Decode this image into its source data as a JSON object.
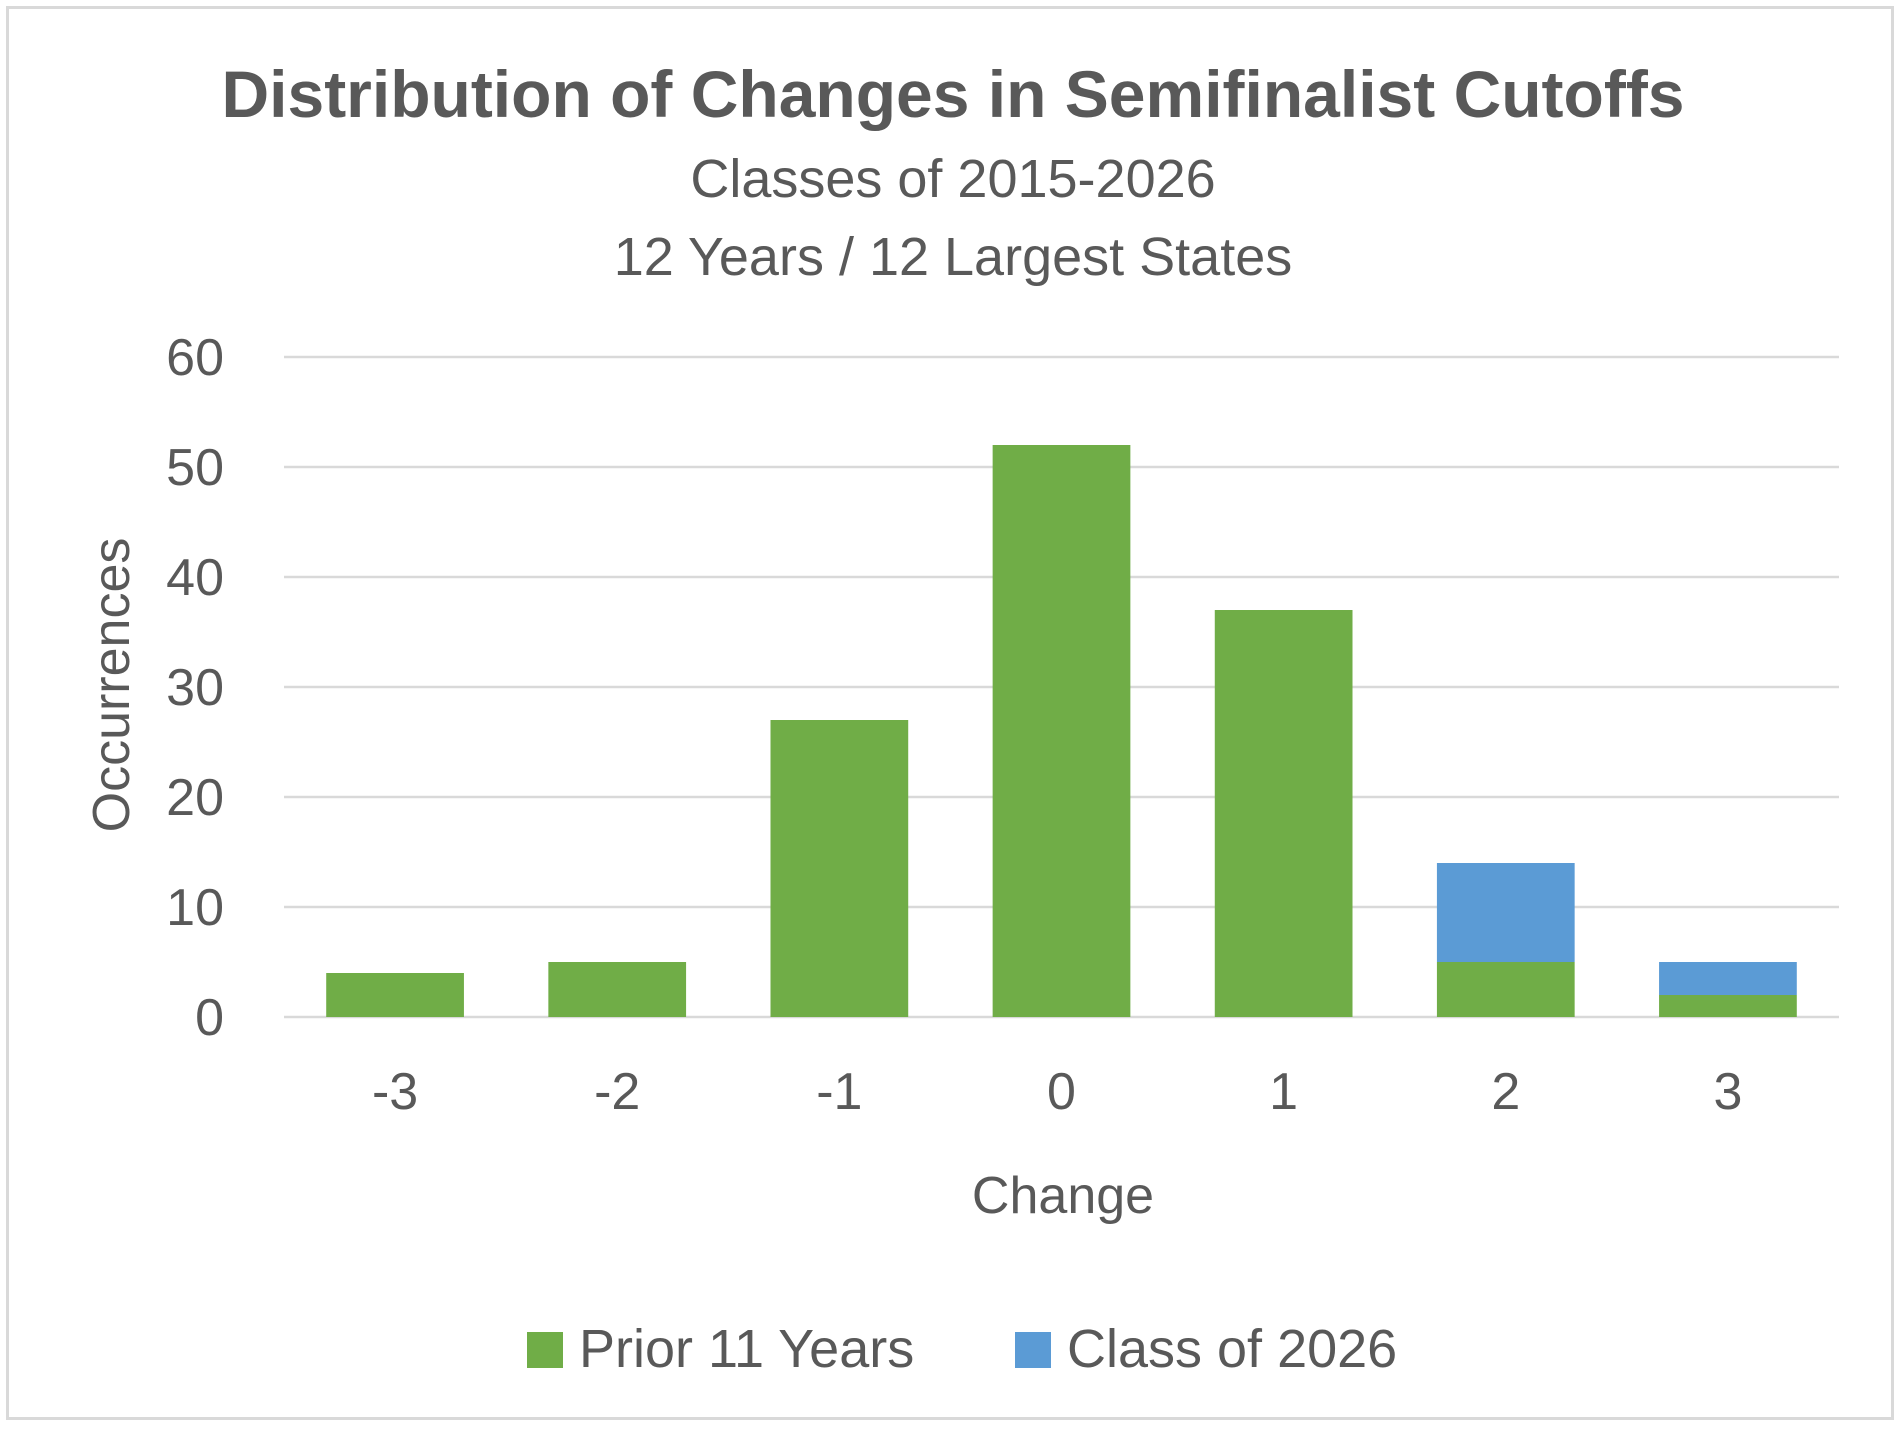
{
  "chart_data": {
    "type": "bar",
    "stacked": true,
    "title": "Distribution of Changes in Semifinalist Cutoffs",
    "subtitle": [
      "Classes of 2015-2026",
      "12 Years / 12 Largest States"
    ],
    "xlabel": "Change",
    "ylabel": "Occurrences",
    "categories": [
      "-3",
      "-2",
      "-1",
      "0",
      "1",
      "2",
      "3"
    ],
    "series": [
      {
        "name": "Prior 11 Years",
        "color": "#70ad47",
        "values": [
          4,
          5,
          27,
          52,
          37,
          5,
          2
        ]
      },
      {
        "name": "Class of 2026",
        "color": "#5b9bd5",
        "values": [
          0,
          0,
          0,
          0,
          0,
          9,
          3
        ]
      }
    ],
    "ylim": [
      0,
      60
    ],
    "yticks": [
      "0",
      "10",
      "20",
      "30",
      "40",
      "50",
      "60"
    ],
    "grid": true,
    "legend_position": "bottom",
    "gridline_color": "#d9d9d9",
    "text_color": "#595959"
  }
}
